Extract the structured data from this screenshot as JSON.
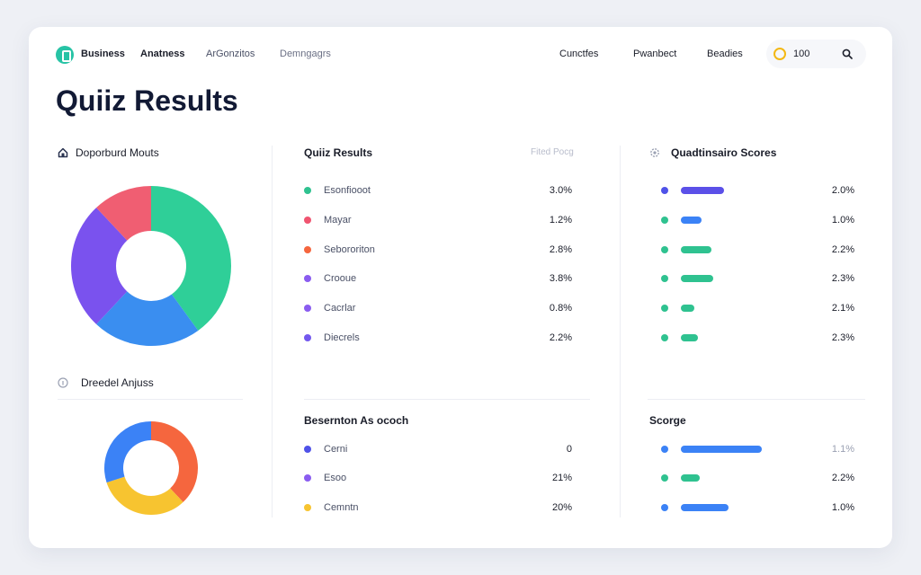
{
  "nav": {
    "left": [
      "Business",
      "Anatness",
      "ArGonzitos",
      "Demngagrs"
    ],
    "right": [
      "Cunctfes",
      "Pwanbect",
      "Beadies"
    ],
    "coin_value": "100"
  },
  "page_title": "Quiiz Results",
  "left_panel": {
    "top_title": "Doporburd Mouts",
    "bottom_title": "Dreedel Anjuss",
    "donut_top": [
      {
        "color": "#2fcf98",
        "value": 40
      },
      {
        "color": "#3a8ef0",
        "value": 22
      },
      {
        "color": "#7a52ee",
        "value": 26
      },
      {
        "color": "#f05e72",
        "value": 12
      }
    ],
    "donut_bottom": [
      {
        "color": "#f5663e",
        "value": 38
      },
      {
        "color": "#f7c430",
        "value": 32
      },
      {
        "color": "#3b82f6",
        "value": 30
      }
    ]
  },
  "middle_panel": {
    "title": "Quiiz Results",
    "hint": "Fited Pocg",
    "rows": [
      {
        "label": "Esonfiooot",
        "value": "3.0%",
        "color": "#2fc290"
      },
      {
        "label": "Mayar",
        "value": "1.2%",
        "color": "#f05470"
      },
      {
        "label": "Sebororiton",
        "value": "2.8%",
        "color": "#f5663e"
      },
      {
        "label": "Crooue",
        "value": "3.8%",
        "color": "#8a5cf0"
      },
      {
        "label": "Cacrlar",
        "value": "0.8%",
        "color": "#8a5cf0"
      },
      {
        "label": "Diecrels",
        "value": "2.2%",
        "color": "#7358ee"
      }
    ],
    "bottom_title": "Besernton As ococh",
    "bottom_rows": [
      {
        "label": "Cerni",
        "value": "0",
        "color": "#4f52e8"
      },
      {
        "label": "Esoo",
        "value": "21%",
        "color": "#8a5cf0"
      },
      {
        "label": "Cemntn",
        "value": "20%",
        "color": "#f7c430"
      }
    ]
  },
  "right_panel": {
    "title": "Quadtinsairo Scores",
    "rows": [
      {
        "value": "2.0%",
        "dot": "#4f52e8",
        "bar": "#5b50e8",
        "fill": 0.49
      },
      {
        "value": "1.0%",
        "dot": "#2fc290",
        "bar": "#3b82f6",
        "fill": 0.23
      },
      {
        "value": "2.2%",
        "dot": "#2fc290",
        "bar": "#2fc290",
        "fill": 0.35
      },
      {
        "value": "2.3%",
        "dot": "#2fc290",
        "bar": "#2fc290",
        "fill": 0.37
      },
      {
        "value": "2.1%",
        "dot": "#2fc290",
        "bar": "#2fc290",
        "fill": 0.15
      },
      {
        "value": "2.3%",
        "dot": "#2fc290",
        "bar": "#2fc290",
        "fill": 0.19
      }
    ],
    "bottom_title": "Scorge",
    "bottom_rows": [
      {
        "value": "1.1%",
        "dot": "#3b82f6",
        "bar": "#3b82f6",
        "fill": 0.92,
        "faint": true
      },
      {
        "value": "2.2%",
        "dot": "#2fc290",
        "bar": "#2fc290",
        "fill": 0.21,
        "faint": false
      },
      {
        "value": "1.0%",
        "dot": "#3b82f6",
        "bar": "#3b82f6",
        "fill": 0.54,
        "faint": false
      }
    ]
  }
}
